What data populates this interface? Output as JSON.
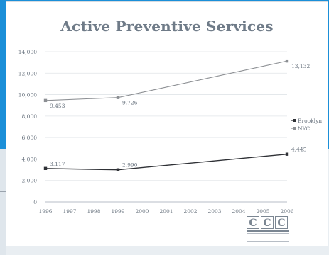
{
  "chart_data": {
    "type": "line",
    "title": "Active Preventive Services",
    "xlabel": "",
    "ylabel": "",
    "categories": [
      "1996",
      "1997",
      "1998",
      "1999",
      "2000",
      "2001",
      "2002",
      "2003",
      "2004",
      "2005",
      "2006"
    ],
    "ylim": [
      0,
      14000
    ],
    "yticks": [
      "0",
      "2,000",
      "4,000",
      "6,000",
      "8,000",
      "10,000",
      "12,000",
      "14,000"
    ],
    "series": [
      {
        "name": "Brooklyn",
        "points": [
          {
            "x": "1996",
            "y": 3117,
            "label": "3,117"
          },
          {
            "x": "1999",
            "y": 2990,
            "label": "2,990"
          },
          {
            "x": "2006",
            "y": 4445,
            "label": "4,445"
          }
        ],
        "color": "#2f3136"
      },
      {
        "name": "NYC",
        "points": [
          {
            "x": "1996",
            "y": 9453,
            "label": "9,453"
          },
          {
            "x": "1999",
            "y": 9726,
            "label": "9,726"
          },
          {
            "x": "2006",
            "y": 13132,
            "label": "13,132"
          }
        ],
        "color": "#8c8f93"
      }
    ],
    "legend": {
      "position": "right",
      "entries": [
        "Brooklyn",
        "NYC"
      ]
    },
    "grid": true
  },
  "logo": {
    "letters": [
      "C",
      "C",
      "C"
    ]
  },
  "colors": {
    "background_blue": "#1b8fd8",
    "slide_white": "#ffffff",
    "title": "#6f7b88",
    "axis_text": "#6b7580",
    "gridline": "#d7dbe0"
  }
}
